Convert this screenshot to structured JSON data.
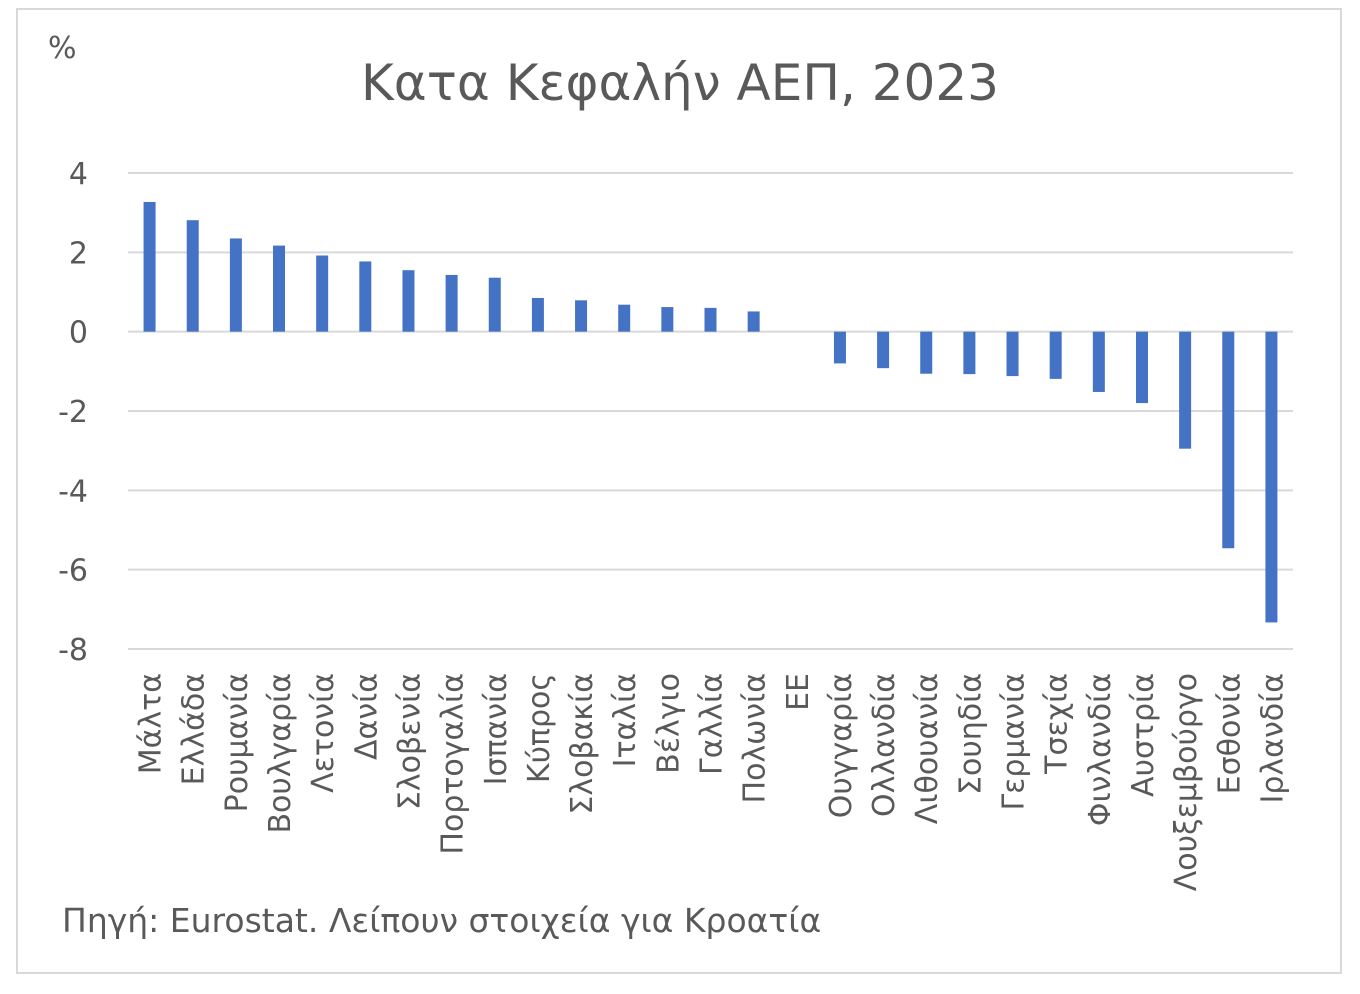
{
  "chart_data": {
    "type": "bar",
    "title": "Κατα Κεφαλήν ΑΕΠ, 2023",
    "ylabel": "%",
    "xlabel": "",
    "ylim": [
      -8,
      4
    ],
    "yticks": [
      4,
      2,
      0,
      -2,
      -4,
      -6,
      -8
    ],
    "grid": true,
    "legend": "none",
    "bar_color": "#4472c4",
    "categories": [
      "Μάλτα",
      "Ελλάδα",
      "Ρουμανία",
      "Βουλγαρία",
      "Λετονία",
      "Δανία",
      "Σλοβενία",
      "Πορτογαλία",
      "Ισπανία",
      "Κύπρος",
      "Σλοβακία",
      "Ιταλία",
      "Βέλγιο",
      "Γαλλία",
      "Πολωνία",
      "ΕΕ",
      "Ουγγαρία",
      "Ολλανδία",
      "Λιθουανία",
      "Σουηδία",
      "Γερμανία",
      "Τσεχία",
      "Φινλανδία",
      "Αυστρία",
      "Λουξεμβούργο",
      "Εσθονία",
      "Ιρλανδία"
    ],
    "values": [
      3.27,
      2.81,
      2.35,
      2.17,
      1.92,
      1.77,
      1.55,
      1.43,
      1.36,
      0.85,
      0.79,
      0.68,
      0.62,
      0.6,
      0.51,
      0,
      -0.8,
      -0.92,
      -1.06,
      -1.07,
      -1.12,
      -1.19,
      -1.52,
      -1.8,
      -2.95,
      -5.46,
      -7.33
    ],
    "source_note": "Πηγή: Eurostat. Λείπουν στοιχεία για Κροατία"
  }
}
